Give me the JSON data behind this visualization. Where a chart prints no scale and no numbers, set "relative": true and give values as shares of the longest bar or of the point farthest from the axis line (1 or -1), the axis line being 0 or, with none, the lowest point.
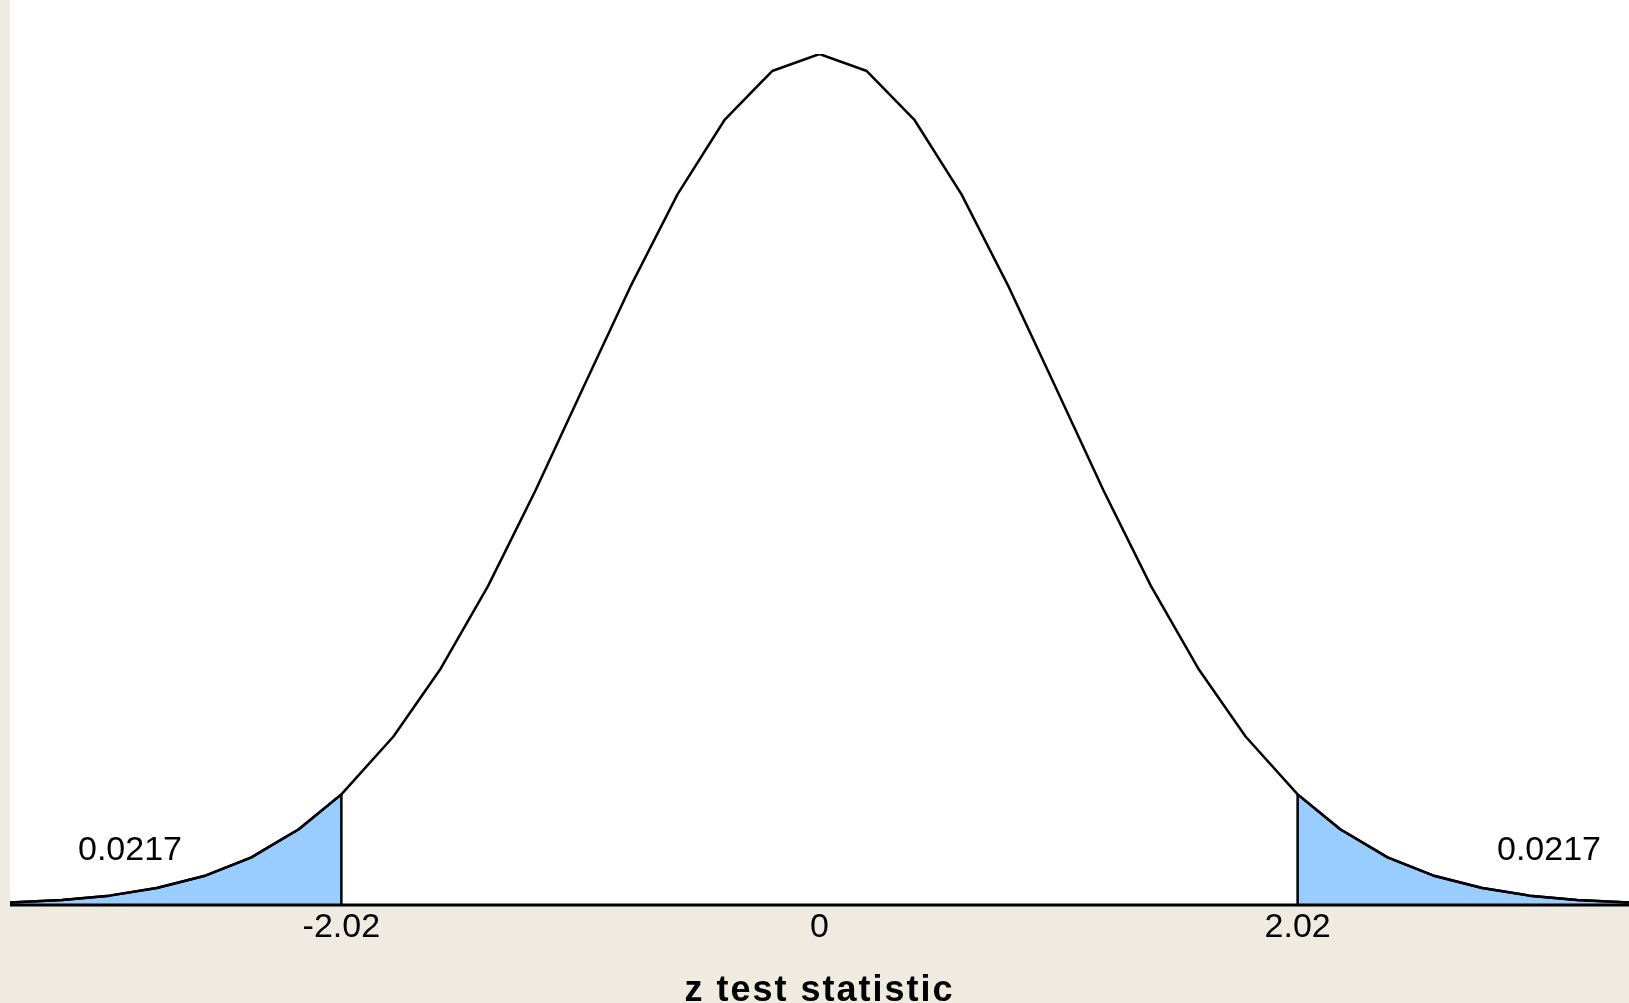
{
  "chart_data": {
    "type": "line",
    "relative": true,
    "xlabel": "z test statistic",
    "xlim": [
      -3.42,
      3.42
    ],
    "xticks": [
      -2.02,
      0,
      2.02
    ],
    "tick_labels": "x",
    "grid": false,
    "marker": "none",
    "line_style": "solid",
    "series": [
      {
        "type": "area",
        "color": "#99ccff",
        "x": [
          -3.42,
          -3.2,
          -3.0,
          -2.8,
          -2.6,
          -2.4,
          -2.2,
          -2.02,
          -2.02
        ],
        "values": [
          0.003,
          0.006,
          0.011,
          0.02,
          0.034,
          0.056,
          0.089,
          0.13,
          0
        ]
      },
      {
        "type": "area",
        "color": "#99ccff",
        "x": [
          2.02,
          2.02,
          2.2,
          2.4,
          2.6,
          2.8,
          3.0,
          3.2,
          3.42
        ],
        "values": [
          0,
          0.13,
          0.089,
          0.056,
          0.034,
          0.02,
          0.011,
          0.006,
          0.003
        ]
      },
      {
        "color": "#000000",
        "x": [
          -3.42,
          -3.2,
          -3.0,
          -2.8,
          -2.6,
          -2.4,
          -2.2,
          -2.02,
          -1.8,
          -1.6,
          -1.4,
          -1.2,
          -1.0,
          -0.8,
          -0.6,
          -0.4,
          -0.2,
          0,
          0.2,
          0.4,
          0.6,
          0.8,
          1.0,
          1.2,
          1.4,
          1.6,
          1.8,
          2.02,
          2.2,
          2.4,
          2.6,
          2.8,
          3.0,
          3.2,
          3.42
        ],
        "values": [
          0.003,
          0.006,
          0.011,
          0.02,
          0.034,
          0.056,
          0.089,
          0.13,
          0.198,
          0.278,
          0.375,
          0.487,
          0.607,
          0.726,
          0.835,
          0.923,
          0.98,
          1,
          0.98,
          0.923,
          0.835,
          0.726,
          0.607,
          0.487,
          0.375,
          0.278,
          0.198,
          0.13,
          0.089,
          0.056,
          0.034,
          0.02,
          0.011,
          0.006,
          0.003
        ]
      }
    ],
    "annotations": [
      "0.0217",
      "0.0217"
    ]
  }
}
